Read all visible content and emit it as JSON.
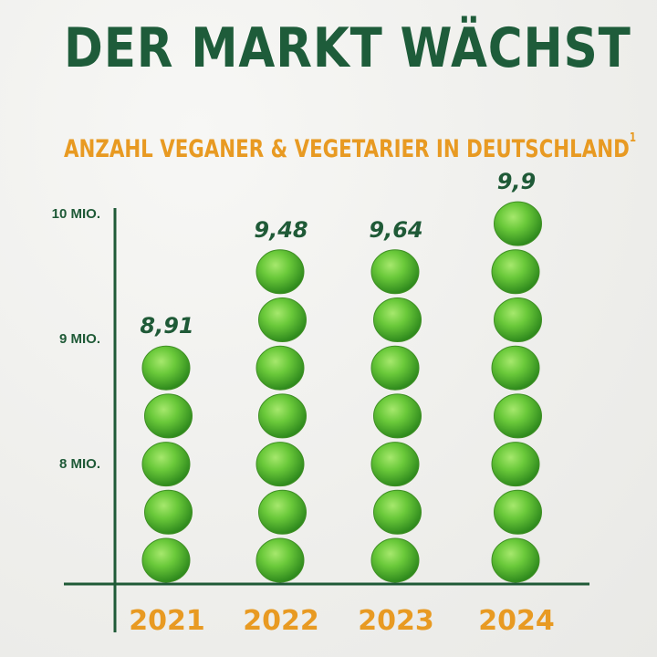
{
  "headline": "DER MARKT WÄCHST",
  "subtitle": "ANZAHL VEGANER & VEGETARIER IN DEUTSCHLAND",
  "subtitle_footnote": "1",
  "colors": {
    "headline": "#1e5c3a",
    "accent_orange": "#e89a22",
    "pea_green": "#6ac93a",
    "axis": "#1f5a37"
  },
  "chart_data": {
    "type": "bar",
    "categories": [
      "2021",
      "2022",
      "2023",
      "2024"
    ],
    "values": [
      8.91,
      9.48,
      9.64,
      9.9
    ],
    "value_labels": [
      "8,91",
      "9,48",
      "9,64",
      "9,9"
    ],
    "unit": "Mio.",
    "ytick_values": [
      8,
      9,
      10
    ],
    "ytick_labels": [
      "8 MIO.",
      "9 MIO.",
      "10 MIO."
    ],
    "peas_per_bar": [
      5,
      7,
      7,
      8
    ],
    "mark_style": "stacked green peas",
    "grid": false,
    "legend": "none"
  }
}
